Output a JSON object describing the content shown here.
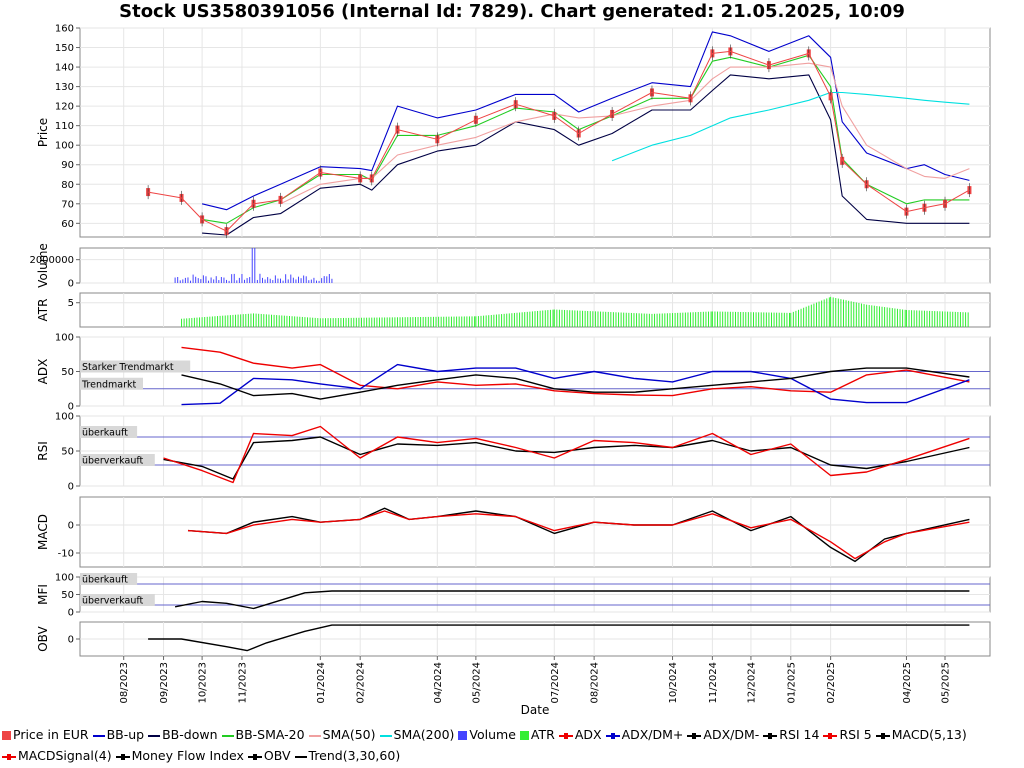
{
  "title": "Stock US3580391056 (Internal Id: 7829). Chart generated: 21.05.2025, 10:09",
  "chart_data": [
    {
      "type": "line",
      "panel": "price",
      "ylabel": "Price",
      "ylim": [
        53,
        160
      ],
      "yticks": [
        60,
        70,
        80,
        90,
        100,
        110,
        120,
        130,
        140,
        150,
        160
      ],
      "x": [
        "2023-08-20",
        "2023-09-15",
        "2023-10-01",
        "2023-10-20",
        "2023-11-10",
        "2023-12-01",
        "2024-01-01",
        "2024-02-01",
        "2024-02-10",
        "2024-03-01",
        "2024-04-01",
        "2024-05-01",
        "2024-06-01",
        "2024-07-01",
        "2024-07-20",
        "2024-08-15",
        "2024-09-15",
        "2024-10-15",
        "2024-11-01",
        "2024-11-15",
        "2024-12-15",
        "2025-01-15",
        "2025-02-01",
        "2025-02-10",
        "2025-03-01",
        "2025-04-01",
        "2025-04-15",
        "2025-05-01",
        "2025-05-20"
      ],
      "series": [
        {
          "name": "Price in EUR",
          "values": [
            76,
            73,
            62,
            56,
            70,
            72,
            86,
            83,
            83,
            108,
            103,
            113,
            121,
            115,
            106,
            116,
            127,
            124,
            147,
            148,
            141,
            147,
            125,
            92,
            80,
            66,
            68,
            70,
            77
          ]
        },
        {
          "name": "BB-up",
          "values": [
            null,
            null,
            70,
            67,
            74,
            80,
            89,
            88,
            87,
            120,
            114,
            118,
            126,
            126,
            117,
            124,
            132,
            130,
            158,
            156,
            148,
            156,
            145,
            112,
            96,
            88,
            90,
            85,
            82
          ]
        },
        {
          "name": "BB-down",
          "values": [
            null,
            null,
            55,
            54,
            63,
            65,
            78,
            80,
            77,
            90,
            97,
            100,
            112,
            108,
            100,
            106,
            118,
            118,
            128,
            136,
            134,
            136,
            113,
            74,
            62,
            60,
            60,
            60,
            60
          ]
        },
        {
          "name": "BB-SMA-20",
          "values": [
            null,
            null,
            62,
            60,
            68,
            72,
            85,
            85,
            82,
            105,
            105,
            110,
            119,
            117,
            108,
            115,
            124,
            124,
            143,
            145,
            140,
            146,
            130,
            93,
            80,
            70,
            72,
            72,
            72
          ]
        },
        {
          "name": "SMA(50)",
          "values": [
            null,
            null,
            null,
            null,
            null,
            70,
            80,
            83,
            83,
            95,
            100,
            104,
            112,
            116,
            114,
            115,
            120,
            123,
            134,
            140,
            140,
            142,
            140,
            120,
            100,
            88,
            84,
            83,
            88
          ]
        },
        {
          "name": "SMA(200)",
          "values": [
            null,
            null,
            null,
            null,
            null,
            null,
            null,
            null,
            null,
            null,
            null,
            null,
            null,
            null,
            null,
            92,
            100,
            105,
            110,
            114,
            118,
            123,
            127,
            127,
            126,
            124,
            123,
            122,
            121
          ]
        }
      ]
    },
    {
      "type": "bar",
      "panel": "volume",
      "ylabel": "Volume",
      "ylim": [
        0,
        3000000
      ],
      "yticks": [
        0,
        2000000
      ],
      "series": [
        {
          "name": "Volume",
          "x_range": [
            "2023-09-10",
            "2024-01-10"
          ],
          "peak": 3200000,
          "typical": 500000
        }
      ]
    },
    {
      "type": "bar",
      "panel": "atr",
      "ylabel": "ATR",
      "ylim": [
        0,
        7
      ],
      "yticks": [
        5
      ],
      "x": [
        "2023-09-15",
        "2023-11-10",
        "2024-01-01",
        "2024-03-01",
        "2024-05-01",
        "2024-07-01",
        "2024-09-15",
        "2024-11-01",
        "2025-01-01",
        "2025-02-01",
        "2025-03-01",
        "2025-04-01",
        "2025-05-20"
      ],
      "series": [
        {
          "name": "ATR",
          "values": [
            1.7,
            2.8,
            1.8,
            2.0,
            2.2,
            3.6,
            2.7,
            3.2,
            2.9,
            6.2,
            4.6,
            3.5,
            3.0
          ]
        }
      ]
    },
    {
      "type": "line",
      "panel": "adx",
      "ylabel": "ADX",
      "ylim": [
        0,
        100
      ],
      "yticks": [
        0,
        50,
        100
      ],
      "reference_lines": [
        {
          "label": "Starker Trendmarkt",
          "y": 50
        },
        {
          "label": "Trendmarkt",
          "y": 25
        }
      ],
      "x": [
        "2023-09-15",
        "2023-10-15",
        "2023-11-10",
        "2023-12-10",
        "2024-01-01",
        "2024-02-01",
        "2024-03-01",
        "2024-04-01",
        "2024-05-01",
        "2024-06-01",
        "2024-07-01",
        "2024-08-01",
        "2024-09-01",
        "2024-10-01",
        "2024-11-01",
        "2024-12-01",
        "2025-01-01",
        "2025-02-01",
        "2025-03-01",
        "2025-04-01",
        "2025-05-20"
      ],
      "series": [
        {
          "name": "ADX",
          "values": [
            85,
            78,
            62,
            55,
            60,
            30,
            25,
            35,
            30,
            32,
            22,
            18,
            16,
            15,
            25,
            28,
            22,
            20,
            45,
            52,
            35
          ]
        },
        {
          "name": "ADX/DM+",
          "values": [
            2,
            4,
            40,
            38,
            32,
            25,
            60,
            50,
            55,
            55,
            40,
            50,
            40,
            35,
            50,
            50,
            40,
            10,
            5,
            5,
            38
          ]
        },
        {
          "name": "ADX/DM-",
          "values": [
            45,
            32,
            15,
            18,
            10,
            20,
            30,
            38,
            45,
            40,
            25,
            20,
            20,
            25,
            30,
            35,
            40,
            50,
            55,
            55,
            42
          ]
        }
      ]
    },
    {
      "type": "line",
      "panel": "rsi",
      "ylabel": "RSI",
      "ylim": [
        0,
        100
      ],
      "yticks": [
        0,
        50,
        100
      ],
      "reference_lines": [
        {
          "label": "überkauft",
          "y": 70
        },
        {
          "label": "überverkauft",
          "y": 30
        }
      ],
      "x": [
        "2023-09-01",
        "2023-10-01",
        "2023-10-25",
        "2023-11-10",
        "2023-12-10",
        "2024-01-01",
        "2024-02-01",
        "2024-03-01",
        "2024-04-01",
        "2024-05-01",
        "2024-06-01",
        "2024-07-01",
        "2024-08-01",
        "2024-09-01",
        "2024-10-01",
        "2024-11-01",
        "2024-12-01",
        "2025-01-01",
        "2025-02-01",
        "2025-03-01",
        "2025-04-01",
        "2025-05-20"
      ],
      "series": [
        {
          "name": "RSI 14",
          "values": [
            38,
            28,
            10,
            62,
            65,
            70,
            45,
            60,
            58,
            62,
            50,
            48,
            55,
            58,
            55,
            65,
            50,
            55,
            30,
            25,
            35,
            55
          ]
        },
        {
          "name": "RSI 5",
          "values": [
            40,
            22,
            5,
            75,
            72,
            85,
            40,
            70,
            62,
            68,
            55,
            40,
            65,
            62,
            55,
            75,
            45,
            60,
            15,
            20,
            38,
            68
          ]
        }
      ]
    },
    {
      "type": "line",
      "panel": "macd",
      "ylabel": "MACD",
      "ylim": [
        -15,
        10
      ],
      "yticks": [
        -10,
        0
      ],
      "x": [
        "2023-09-20",
        "2023-10-20",
        "2023-11-10",
        "2023-12-10",
        "2024-01-01",
        "2024-02-01",
        "2024-02-20",
        "2024-03-10",
        "2024-04-01",
        "2024-05-01",
        "2024-06-01",
        "2024-07-01",
        "2024-08-01",
        "2024-09-01",
        "2024-10-01",
        "2024-11-01",
        "2024-12-01",
        "2025-01-01",
        "2025-02-01",
        "2025-02-20",
        "2025-03-15",
        "2025-04-01",
        "2025-05-20"
      ],
      "series": [
        {
          "name": "MACD(5,13)",
          "values": [
            -2,
            -3,
            1,
            3,
            1,
            2,
            6,
            2,
            3,
            5,
            3,
            -3,
            1,
            0,
            0,
            5,
            -2,
            3,
            -8,
            -13,
            -5,
            -3,
            2
          ]
        },
        {
          "name": "MACDSignal(4)",
          "values": [
            -2,
            -3,
            0,
            2,
            1,
            2,
            5,
            2,
            3,
            4,
            3,
            -2,
            1,
            0,
            0,
            4,
            -1,
            2,
            -6,
            -12,
            -6,
            -3,
            1
          ]
        }
      ]
    },
    {
      "type": "line",
      "panel": "mfi",
      "ylabel": "MFI",
      "ylim": [
        0,
        100
      ],
      "yticks": [
        0,
        50,
        100
      ],
      "reference_lines": [
        {
          "label": "überkauft",
          "y": 80
        },
        {
          "label": "überverkauft",
          "y": 20
        }
      ],
      "x": [
        "2023-09-10",
        "2023-10-01",
        "2023-10-20",
        "2023-11-10",
        "2023-12-20",
        "2024-01-10",
        "2025-05-20"
      ],
      "series": [
        {
          "name": "Money Flow Index",
          "values": [
            15,
            30,
            25,
            10,
            55,
            60,
            60
          ]
        }
      ]
    },
    {
      "type": "line",
      "panel": "obv",
      "ylabel": "OBV",
      "yticks": [
        0
      ],
      "x": [
        "2023-08-20",
        "2023-09-15",
        "2023-10-20",
        "2023-11-05",
        "2023-11-20",
        "2023-12-20",
        "2024-01-10",
        "2025-05-20"
      ],
      "series": [
        {
          "name": "OBV",
          "values": [
            0,
            0,
            -10,
            -15,
            -5,
            10,
            18,
            18
          ]
        }
      ]
    }
  ],
  "xaxis": {
    "label": "Date",
    "ticks": [
      "08/2023",
      "09/2023",
      "10/2023",
      "11/2023",
      "01/2024",
      "02/2024",
      "04/2024",
      "05/2024",
      "07/2024",
      "08/2024",
      "10/2024",
      "11/2024",
      "12/2024",
      "01/2025",
      "02/2025",
      "04/2025",
      "05/2025"
    ]
  },
  "legend": [
    {
      "label": "Price in EUR",
      "color": "#ee4444",
      "symbol": "square"
    },
    {
      "label": "BB-up",
      "color": "#0000cc",
      "symbol": "line"
    },
    {
      "label": "BB-down",
      "color": "#000044",
      "symbol": "line"
    },
    {
      "label": "BB-SMA-20",
      "color": "#22cc22",
      "symbol": "line"
    },
    {
      "label": "SMA(50)",
      "color": "#f0a0a0",
      "symbol": "line"
    },
    {
      "label": "SMA(200)",
      "color": "#00e0e0",
      "symbol": "line"
    },
    {
      "label": "Volume",
      "color": "#4444ff",
      "symbol": "square"
    },
    {
      "label": "ATR",
      "color": "#33ee33",
      "symbol": "square"
    },
    {
      "label": "ADX",
      "color": "#ee0000",
      "symbol": "dotline"
    },
    {
      "label": "ADX/DM+",
      "color": "#0000cc",
      "symbol": "dotline"
    },
    {
      "label": "ADX/DM-",
      "color": "#000000",
      "symbol": "dotline"
    },
    {
      "label": "RSI 14",
      "color": "#000000",
      "symbol": "dotline"
    },
    {
      "label": "RSI 5",
      "color": "#ee0000",
      "symbol": "dotline"
    },
    {
      "label": "MACD(5,13)",
      "color": "#000000",
      "symbol": "dotline"
    },
    {
      "label": "MACDSignal(4)",
      "color": "#ee0000",
      "symbol": "dotline"
    },
    {
      "label": "Money Flow Index",
      "color": "#000000",
      "symbol": "dotline"
    },
    {
      "label": "OBV",
      "color": "#000000",
      "symbol": "dotline"
    },
    {
      "label": "Trend(3,30,60)",
      "color": "#000000",
      "symbol": "line"
    }
  ]
}
